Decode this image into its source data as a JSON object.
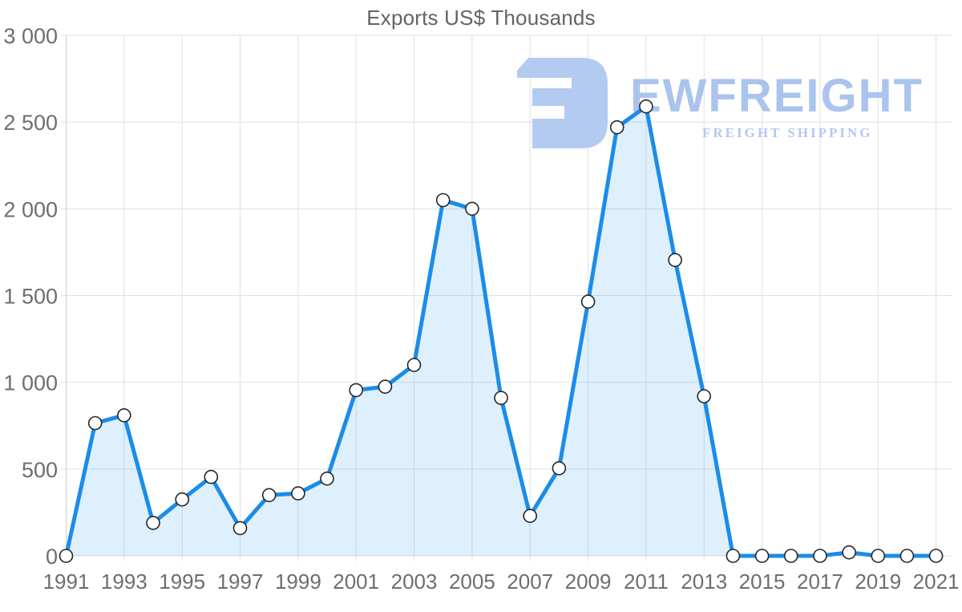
{
  "watermark": {
    "brand": "EWFREIGHT",
    "tagline": "FREIGHT SHIPPING",
    "brand_color": "#aac4ee",
    "tagline_color": "#b5c8f1",
    "icon_color": "#b3cbf0",
    "icon_name": "ewfreight-logo-icon"
  },
  "chart_data": {
    "type": "area",
    "title": "Exports US$ Thousands",
    "xlabel": "",
    "ylabel": "",
    "x": [
      1991,
      1992,
      1993,
      1994,
      1995,
      1996,
      1997,
      1998,
      1999,
      2000,
      2001,
      2002,
      2003,
      2004,
      2005,
      2006,
      2007,
      2008,
      2009,
      2010,
      2011,
      2012,
      2013,
      2014,
      2015,
      2016,
      2017,
      2018,
      2019,
      2020,
      2021
    ],
    "values": [
      0,
      765,
      810,
      190,
      325,
      455,
      160,
      350,
      360,
      445,
      955,
      975,
      1100,
      2050,
      2000,
      910,
      230,
      505,
      1465,
      2470,
      2590,
      1705,
      920,
      0,
      0,
      0,
      0,
      20,
      0,
      0,
      0
    ],
    "x_tick_labels": [
      "1991",
      "1993",
      "1995",
      "1997",
      "1999",
      "2001",
      "2003",
      "2005",
      "2007",
      "2009",
      "2011",
      "2013",
      "2015",
      "2017",
      "2019",
      "2021"
    ],
    "y_ticks": [
      0,
      500,
      1000,
      1500,
      2000,
      2500,
      3000
    ],
    "y_tick_labels": [
      "0",
      "500",
      "1 000",
      "1 500",
      "2 000",
      "2 500",
      "3 000"
    ],
    "ylim": [
      0,
      3000
    ],
    "grid": true,
    "legend": "none",
    "marker": "circle",
    "colors": {
      "line": "#1b8ce9",
      "fill": "rgba(33,150,243,0.15)",
      "grid": "#e0e0e0",
      "axis": "#cccccc",
      "tick_label": "#6e6e6e",
      "title": "#646464",
      "marker_fill": "#ffffff",
      "marker_stroke": "#262626"
    }
  }
}
